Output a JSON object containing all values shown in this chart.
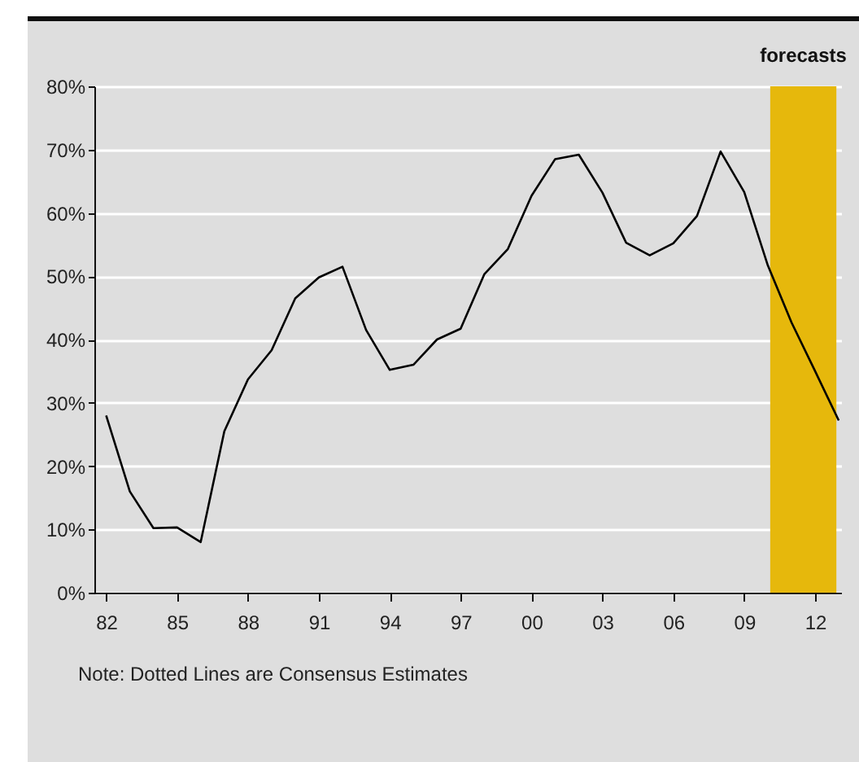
{
  "chart_data": {
    "type": "line",
    "x": [
      1982,
      1983,
      1984,
      1985,
      1986,
      1987,
      1988,
      1989,
      1990,
      1991,
      1992,
      1993,
      1994,
      1995,
      1996,
      1997,
      1998,
      1999,
      2000,
      2001,
      2002,
      2003,
      2004,
      2005,
      2006,
      2007,
      2008,
      2009,
      2010,
      2011,
      2012,
      2013
    ],
    "series": [
      {
        "color": "#000000",
        "values": [
          28,
          16,
          10.2,
          10.3,
          8,
          25.5,
          33.7,
          38.3,
          46.5,
          49.8,
          51.5,
          41.5,
          35.2,
          36,
          40,
          41.7,
          50.3,
          54.3,
          62.7,
          68.5,
          69.2,
          63.2,
          55.3,
          53.3,
          55.2,
          59.5,
          69.7,
          63.3,
          51.7,
          42.7,
          35,
          27.2
        ]
      }
    ],
    "xlim": [
      1981.5,
      2013.1
    ],
    "xticks": [
      {
        "value": 1982,
        "label": "82"
      },
      {
        "value": 1985,
        "label": "85"
      },
      {
        "value": 1988,
        "label": "88"
      },
      {
        "value": 1991,
        "label": "91"
      },
      {
        "value": 1994,
        "label": "94"
      },
      {
        "value": 1997,
        "label": "97"
      },
      {
        "value": 2000,
        "label": "00"
      },
      {
        "value": 2003,
        "label": "03"
      },
      {
        "value": 2006,
        "label": "06"
      },
      {
        "value": 2009,
        "label": "09"
      },
      {
        "value": 2012,
        "label": "12"
      }
    ],
    "ylim": [
      0,
      80
    ],
    "yticks": [
      {
        "value": 0,
        "label": "0%"
      },
      {
        "value": 10,
        "label": "10%"
      },
      {
        "value": 20,
        "label": "20%"
      },
      {
        "value": 30,
        "label": "30%"
      },
      {
        "value": 40,
        "label": "40%"
      },
      {
        "value": 50,
        "label": "50%"
      },
      {
        "value": 60,
        "label": "60%"
      },
      {
        "value": 70,
        "label": "70%"
      },
      {
        "value": 80,
        "label": "80%"
      }
    ],
    "grid": "y",
    "bands": [
      {
        "axis": "x",
        "from": 2010.1,
        "to": 2012.9,
        "label": "forecasts",
        "color": "#e6b80c"
      }
    ],
    "annotations": [
      "Note: Dotted Lines are Consensus Estimates"
    ]
  }
}
